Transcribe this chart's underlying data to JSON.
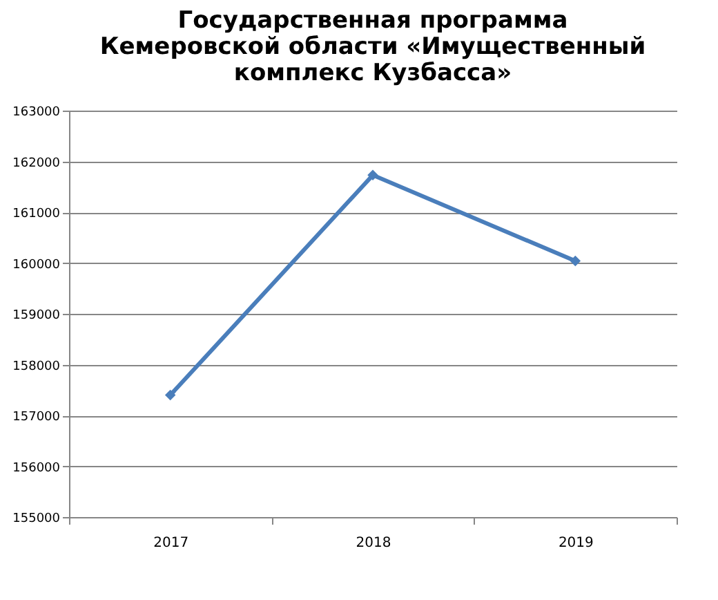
{
  "chart_data": {
    "type": "line",
    "title": "Государственная программа Кемеровской области «Имущественный комплекс Кузбасса»",
    "categories": [
      "2017",
      "2018",
      "2019"
    ],
    "series": [
      {
        "color": "#4a7ebb",
        "values": [
          157400,
          161730,
          160040
        ]
      }
    ],
    "ylim": [
      155000,
      163000
    ],
    "yticks": [
      155000,
      156000,
      157000,
      158000,
      159000,
      160000,
      161000,
      162000,
      163000
    ],
    "grid": "y",
    "legend": false,
    "marker": "diamond",
    "line_style": "solid"
  }
}
